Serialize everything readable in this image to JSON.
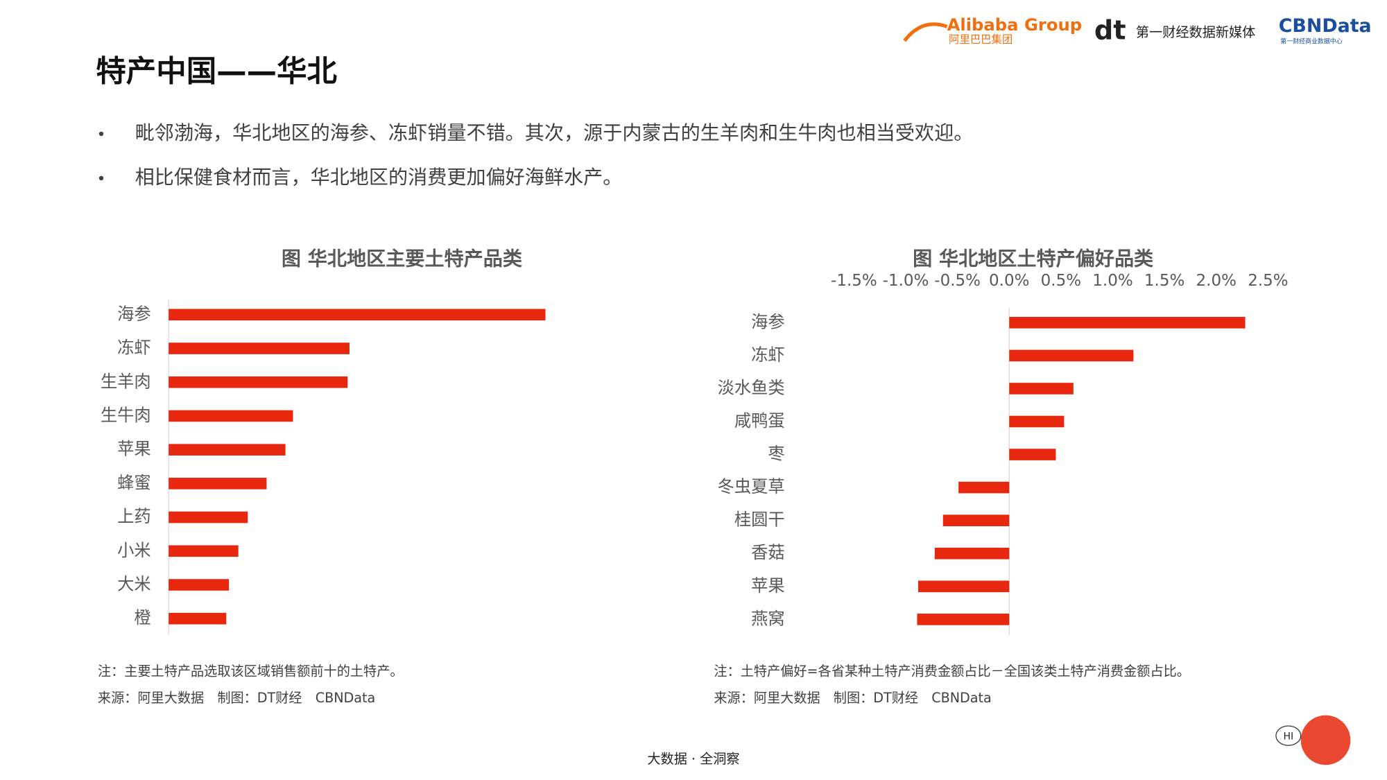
{
  "header": {
    "title": "特产中国——华北",
    "logo_alibaba": "Alibaba Group",
    "logo_alibaba_cn": "阿里巴巴集团",
    "logo_dt": "dt",
    "logo_dt_text": "第一财经数据新媒体",
    "logo_cbn": "CBNData",
    "logo_cbn_sub": "第一财经商业数据中心"
  },
  "bullets": [
    "毗邻渤海，华北地区的海参、冻虾销量不错。其次，源于内蒙古的生羊肉和生牛肉也相当受欢迎。",
    "相比保健食材而言，华北地区的消费更加偏好海鲜水产。"
  ],
  "chart_data": [
    {
      "type": "hbar",
      "title": "图 华北地区主要土特产品类",
      "categories": [
        "海参",
        "冻虾",
        "生羊肉",
        "生牛肉",
        "苹果",
        "蜂蜜",
        "上药",
        "小米",
        "大米",
        "橙"
      ],
      "values": [
        100,
        48,
        47.5,
        33,
        31,
        26,
        21,
        18.5,
        16,
        15.3
      ],
      "color": "#e8280e",
      "note": "注：主要土特产品选取该区域销售额前十的土特产。",
      "source": "来源：阿里大数据　制图：DT财经　CBNData"
    },
    {
      "type": "hbar",
      "title": "图 华北地区土特产偏好品类",
      "categories": [
        "海参",
        "冻虾",
        "淡水鱼类",
        "咸鸭蛋",
        "枣",
        "冬虫夏草",
        "桂圆干",
        "香菇",
        "苹果",
        "燕窝"
      ],
      "values": [
        2.28,
        1.2,
        0.62,
        0.53,
        0.45,
        -0.49,
        -0.64,
        -0.72,
        -0.88,
        -0.89
      ],
      "color": "#e8280e",
      "xlim": [
        -1.5,
        2.5
      ],
      "xticks": [
        {
          "value": -1.5,
          "label": "-1.5%"
        },
        {
          "value": -1.0,
          "label": "-1.0%"
        },
        {
          "value": -0.5,
          "label": "-0.5%"
        },
        {
          "value": 0.0,
          "label": "0.0%"
        },
        {
          "value": 0.5,
          "label": "0.5%"
        },
        {
          "value": 1.0,
          "label": "1.0%"
        },
        {
          "value": 1.5,
          "label": "1.5%"
        },
        {
          "value": 2.0,
          "label": "2.0%"
        },
        {
          "value": 2.5,
          "label": "2.5%"
        }
      ],
      "note": "注：土特产偏好=各省某种土特产消费金额占比－全国该类土特产消费金额占比。",
      "source": "来源：阿里大数据　制图：DT财经　CBNData"
    }
  ],
  "footer": {
    "tagline": "大数据 · 全洞察",
    "mascot": "HI"
  }
}
